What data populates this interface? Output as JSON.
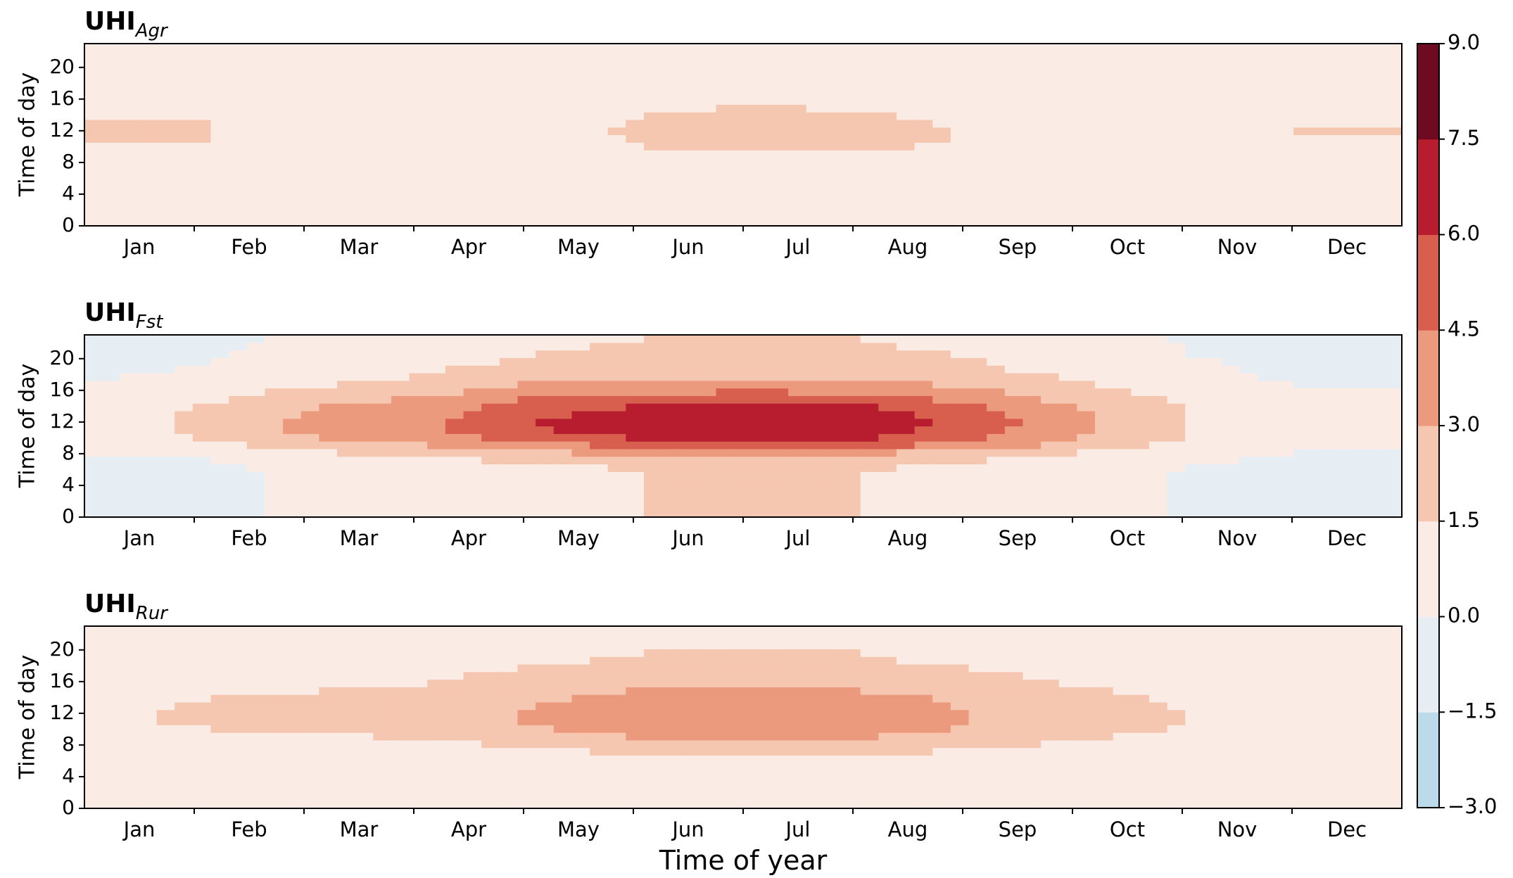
{
  "figure": {
    "xlabel": "Time of year",
    "ylabel": "Time of day"
  },
  "chart_data": {
    "type": "heatmap",
    "xlabel": "Time of year",
    "ylabel": "Time of day",
    "x_ticks": [
      "Jan",
      "Feb",
      "Mar",
      "Apr",
      "May",
      "Jun",
      "Jul",
      "Aug",
      "Sep",
      "Oct",
      "Nov",
      "Dec"
    ],
    "y_ticks": [
      0,
      4,
      8,
      12,
      16,
      20
    ],
    "ylim": [
      0,
      23
    ],
    "months_rows": [
      0,
      1,
      2,
      3,
      4,
      5,
      6,
      7,
      8,
      9,
      10,
      11
    ],
    "hours_cols": [
      0,
      1,
      2,
      3,
      4,
      5,
      6,
      7,
      8,
      9,
      10,
      11,
      12,
      13,
      14,
      15,
      16,
      17,
      18,
      19,
      20,
      21,
      22,
      23
    ],
    "colorbar": {
      "levels": [
        -3.0,
        -1.5,
        0.0,
        1.5,
        3.0,
        4.5,
        6.0,
        7.5,
        9.0
      ],
      "tick_labels": [
        "−3.0",
        "−1.5",
        "0.0",
        "1.5",
        "3.0",
        "4.5",
        "6.0",
        "7.5",
        "9.0"
      ],
      "colors": [
        "#bcdbea",
        "#e6eef4",
        "#faebe4",
        "#f6c7b0",
        "#ec9a7e",
        "#d85f4e",
        "#b71d2e",
        "#6e0a22"
      ]
    },
    "panels": [
      {
        "title_main": "UHI",
        "title_sub": "Agr",
        "values": [
          [
            0.7,
            0.7,
            0.7,
            0.7,
            0.7,
            0.7,
            0.8,
            0.9,
            1.0,
            1.2,
            1.4,
            1.5,
            1.6,
            1.5,
            1.4,
            1.2,
            1.1,
            1.0,
            0.9,
            0.8,
            0.8,
            0.7,
            0.7,
            0.7
          ],
          [
            0.7,
            0.7,
            0.7,
            0.7,
            0.7,
            0.7,
            0.8,
            0.9,
            1.0,
            1.2,
            1.4,
            1.5,
            1.5,
            1.5,
            1.4,
            1.3,
            1.2,
            1.0,
            0.9,
            0.8,
            0.8,
            0.7,
            0.7,
            0.7
          ],
          [
            0.8,
            0.8,
            0.8,
            0.8,
            0.8,
            0.8,
            0.9,
            1.0,
            1.1,
            1.2,
            1.3,
            1.4,
            1.4,
            1.4,
            1.4,
            1.3,
            1.2,
            1.1,
            1.0,
            0.9,
            0.9,
            0.8,
            0.8,
            0.8
          ],
          [
            0.6,
            0.6,
            0.6,
            0.6,
            0.6,
            0.6,
            0.7,
            0.8,
            0.8,
            0.9,
            1.0,
            1.1,
            1.1,
            1.1,
            1.0,
            1.0,
            0.9,
            0.8,
            0.8,
            0.7,
            0.7,
            0.6,
            0.6,
            0.6
          ],
          [
            0.4,
            0.4,
            0.4,
            0.4,
            0.4,
            0.4,
            0.5,
            0.6,
            0.7,
            0.8,
            0.9,
            1.0,
            1.0,
            1.0,
            0.9,
            0.9,
            0.8,
            0.7,
            0.6,
            0.6,
            0.5,
            0.5,
            0.4,
            0.4
          ],
          [
            0.4,
            0.4,
            0.4,
            0.4,
            0.4,
            0.4,
            0.5,
            0.6,
            0.9,
            1.2,
            1.5,
            1.6,
            1.7,
            1.6,
            1.5,
            1.3,
            1.1,
            0.9,
            0.8,
            0.7,
            0.6,
            0.5,
            0.5,
            0.4
          ],
          [
            0.5,
            0.5,
            0.5,
            0.5,
            0.5,
            0.5,
            0.6,
            0.8,
            1.1,
            1.5,
            1.8,
            2.0,
            2.0,
            1.9,
            1.8,
            1.6,
            1.3,
            1.1,
            0.9,
            0.8,
            0.7,
            0.6,
            0.6,
            0.5
          ],
          [
            0.5,
            0.5,
            0.5,
            0.5,
            0.5,
            0.5,
            0.6,
            0.7,
            1.0,
            1.4,
            1.7,
            1.8,
            1.8,
            1.7,
            1.6,
            1.4,
            1.2,
            1.0,
            0.9,
            0.8,
            0.7,
            0.6,
            0.5,
            0.5
          ],
          [
            0.5,
            0.5,
            0.5,
            0.5,
            0.5,
            0.5,
            0.5,
            0.6,
            0.8,
            1.1,
            1.3,
            1.4,
            1.4,
            1.4,
            1.3,
            1.1,
            1.0,
            0.9,
            0.8,
            0.7,
            0.6,
            0.6,
            0.5,
            0.5
          ],
          [
            0.5,
            0.5,
            0.5,
            0.5,
            0.5,
            0.5,
            0.5,
            0.6,
            0.7,
            0.9,
            1.0,
            1.1,
            1.1,
            1.1,
            1.0,
            1.0,
            0.9,
            0.8,
            0.7,
            0.6,
            0.6,
            0.5,
            0.5,
            0.5
          ],
          [
            0.6,
            0.6,
            0.6,
            0.6,
            0.6,
            0.6,
            0.6,
            0.7,
            0.8,
            1.0,
            1.2,
            1.3,
            1.3,
            1.3,
            1.2,
            1.1,
            1.0,
            0.9,
            0.8,
            0.7,
            0.7,
            0.6,
            0.6,
            0.6
          ],
          [
            0.7,
            0.7,
            0.7,
            0.7,
            0.7,
            0.7,
            0.7,
            0.8,
            0.9,
            1.1,
            1.3,
            1.4,
            1.5,
            1.4,
            1.3,
            1.2,
            1.1,
            1.0,
            0.9,
            0.8,
            0.8,
            0.7,
            0.7,
            0.7
          ]
        ]
      },
      {
        "title_main": "UHI",
        "title_sub": "Fst",
        "values": [
          [
            -0.4,
            -0.4,
            -0.4,
            -0.4,
            -0.4,
            -0.4,
            -0.3,
            -0.2,
            0.0,
            0.3,
            0.6,
            0.7,
            0.7,
            0.6,
            0.5,
            0.3,
            0.1,
            0.0,
            -0.1,
            -0.2,
            -0.3,
            -0.3,
            -0.4,
            -0.4
          ],
          [
            -0.3,
            -0.3,
            -0.3,
            -0.3,
            -0.3,
            -0.3,
            -0.2,
            0.0,
            0.4,
            1.0,
            1.6,
            1.9,
            1.9,
            1.8,
            1.6,
            1.3,
            0.9,
            0.6,
            0.3,
            0.1,
            0.0,
            -0.1,
            -0.2,
            -0.3
          ],
          [
            0.2,
            0.2,
            0.2,
            0.2,
            0.2,
            0.2,
            0.3,
            0.6,
            1.3,
            2.2,
            3.0,
            3.4,
            3.4,
            3.2,
            3.0,
            2.5,
            1.9,
            1.4,
            1.0,
            0.7,
            0.5,
            0.4,
            0.3,
            0.2
          ],
          [
            0.7,
            0.7,
            0.7,
            0.7,
            0.7,
            0.7,
            0.8,
            1.2,
            2.0,
            3.0,
            3.8,
            4.1,
            4.2,
            4.0,
            3.7,
            3.2,
            2.6,
            2.0,
            1.6,
            1.3,
            1.1,
            1.0,
            0.9,
            0.8
          ],
          [
            1.2,
            1.2,
            1.2,
            1.2,
            1.2,
            1.2,
            1.3,
            1.8,
            2.8,
            4.1,
            5.2,
            5.8,
            5.9,
            5.7,
            5.3,
            4.6,
            3.8,
            3.1,
            2.5,
            2.0,
            1.7,
            1.5,
            1.4,
            1.3
          ],
          [
            1.5,
            1.5,
            1.5,
            1.5,
            1.5,
            1.5,
            1.6,
            2.2,
            3.4,
            5.0,
            6.2,
            6.8,
            6.9,
            6.6,
            6.1,
            5.3,
            4.3,
            3.5,
            2.8,
            2.3,
            2.0,
            1.8,
            1.6,
            1.5
          ],
          [
            1.6,
            1.6,
            1.6,
            1.6,
            1.6,
            1.6,
            1.7,
            2.3,
            3.6,
            5.3,
            6.6,
            7.2,
            7.3,
            7.0,
            6.5,
            5.6,
            4.6,
            3.7,
            3.0,
            2.5,
            2.1,
            1.9,
            1.7,
            1.6
          ],
          [
            1.5,
            1.5,
            1.5,
            1.5,
            1.5,
            1.5,
            1.6,
            2.1,
            3.3,
            5.0,
            6.3,
            6.8,
            6.9,
            6.6,
            6.1,
            5.3,
            4.3,
            3.5,
            2.8,
            2.3,
            2.0,
            1.8,
            1.6,
            1.5
          ],
          [
            1.2,
            1.2,
            1.2,
            1.2,
            1.2,
            1.2,
            1.3,
            1.6,
            2.5,
            3.8,
            4.8,
            5.2,
            5.3,
            5.1,
            4.7,
            4.1,
            3.4,
            2.7,
            2.2,
            1.8,
            1.6,
            1.4,
            1.3,
            1.2
          ],
          [
            0.6,
            0.6,
            0.6,
            0.6,
            0.6,
            0.6,
            0.7,
            0.9,
            1.5,
            2.4,
            3.0,
            3.3,
            3.3,
            3.2,
            2.9,
            2.5,
            2.0,
            1.6,
            1.3,
            1.0,
            0.9,
            0.8,
            0.7,
            0.6
          ],
          [
            -0.1,
            -0.1,
            -0.1,
            -0.1,
            -0.1,
            -0.1,
            0.0,
            0.2,
            0.6,
            1.0,
            1.4,
            1.5,
            1.5,
            1.4,
            1.3,
            1.1,
            0.8,
            0.6,
            0.4,
            0.2,
            0.1,
            0.0,
            0.0,
            -0.1
          ],
          [
            -0.4,
            -0.4,
            -0.4,
            -0.4,
            -0.4,
            -0.4,
            -0.3,
            -0.3,
            -0.1,
            0.1,
            0.3,
            0.4,
            0.4,
            0.3,
            0.2,
            0.1,
            0.0,
            -0.1,
            -0.2,
            -0.3,
            -0.3,
            -0.3,
            -0.4,
            -0.4
          ]
        ]
      },
      {
        "title_main": "UHI",
        "title_sub": "Rur",
        "values": [
          [
            0.2,
            0.2,
            0.2,
            0.2,
            0.2,
            0.2,
            0.3,
            0.4,
            0.6,
            0.9,
            1.2,
            1.3,
            1.3,
            1.2,
            1.1,
            0.9,
            0.7,
            0.6,
            0.5,
            0.4,
            0.3,
            0.3,
            0.2,
            0.2
          ],
          [
            0.3,
            0.3,
            0.3,
            0.3,
            0.3,
            0.3,
            0.4,
            0.5,
            0.8,
            1.2,
            1.5,
            1.7,
            1.7,
            1.6,
            1.5,
            1.3,
            1.1,
            0.9,
            0.7,
            0.6,
            0.5,
            0.4,
            0.4,
            0.3
          ],
          [
            0.5,
            0.5,
            0.5,
            0.5,
            0.5,
            0.5,
            0.6,
            0.7,
            1.0,
            1.4,
            1.8,
            1.9,
            1.9,
            1.8,
            1.7,
            1.5,
            1.3,
            1.1,
            0.9,
            0.8,
            0.7,
            0.6,
            0.6,
            0.5
          ],
          [
            0.7,
            0.7,
            0.7,
            0.7,
            0.7,
            0.7,
            0.8,
            0.9,
            1.2,
            1.6,
            1.9,
            2.0,
            2.1,
            2.0,
            1.9,
            1.7,
            1.5,
            1.3,
            1.1,
            1.0,
            0.9,
            0.8,
            0.7,
            0.7
          ],
          [
            1.0,
            1.0,
            1.0,
            1.0,
            1.0,
            1.0,
            1.1,
            1.3,
            1.8,
            2.4,
            2.9,
            3.1,
            3.1,
            3.0,
            2.8,
            2.5,
            2.2,
            1.9,
            1.6,
            1.4,
            1.2,
            1.1,
            1.0,
            1.0
          ],
          [
            1.3,
            1.3,
            1.3,
            1.3,
            1.3,
            1.3,
            1.4,
            1.7,
            2.3,
            3.1,
            3.6,
            3.8,
            3.8,
            3.7,
            3.5,
            3.1,
            2.6,
            2.2,
            1.9,
            1.6,
            1.5,
            1.4,
            1.3,
            1.3
          ],
          [
            1.4,
            1.4,
            1.4,
            1.4,
            1.4,
            1.4,
            1.5,
            1.8,
            2.5,
            3.4,
            3.9,
            4.2,
            4.2,
            4.0,
            3.8,
            3.3,
            2.8,
            2.3,
            2.0,
            1.7,
            1.6,
            1.5,
            1.4,
            1.4
          ],
          [
            1.3,
            1.3,
            1.3,
            1.3,
            1.3,
            1.3,
            1.4,
            1.7,
            2.3,
            3.1,
            3.6,
            3.8,
            3.8,
            3.7,
            3.4,
            3.0,
            2.6,
            2.1,
            1.8,
            1.6,
            1.5,
            1.4,
            1.3,
            1.3
          ],
          [
            1.1,
            1.1,
            1.1,
            1.1,
            1.1,
            1.1,
            1.2,
            1.4,
            1.8,
            2.4,
            2.8,
            3.0,
            3.0,
            2.9,
            2.7,
            2.4,
            2.0,
            1.7,
            1.5,
            1.3,
            1.2,
            1.2,
            1.1,
            1.1
          ],
          [
            0.8,
            0.8,
            0.8,
            0.8,
            0.8,
            0.8,
            0.9,
            1.0,
            1.3,
            1.7,
            2.0,
            2.2,
            2.2,
            2.1,
            1.9,
            1.7,
            1.4,
            1.2,
            1.1,
            1.0,
            0.9,
            0.8,
            0.8,
            0.8
          ],
          [
            0.4,
            0.4,
            0.4,
            0.4,
            0.4,
            0.4,
            0.5,
            0.6,
            0.8,
            1.0,
            1.3,
            1.4,
            1.4,
            1.3,
            1.2,
            1.0,
            0.8,
            0.7,
            0.6,
            0.5,
            0.5,
            0.4,
            0.4,
            0.4
          ],
          [
            0.1,
            0.1,
            0.1,
            0.1,
            0.1,
            0.1,
            0.2,
            0.3,
            0.5,
            0.8,
            1.0,
            1.1,
            1.1,
            1.0,
            0.9,
            0.7,
            0.5,
            0.4,
            0.3,
            0.2,
            0.2,
            0.1,
            0.1,
            0.1
          ]
        ]
      }
    ]
  }
}
